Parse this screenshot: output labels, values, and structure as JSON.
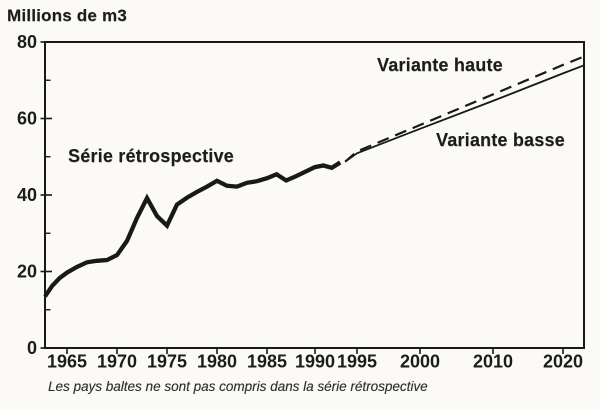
{
  "chart_data": {
    "type": "line",
    "title": "Millions de m3",
    "ylabel": "Millions de m3",
    "xlabel": "",
    "ylim": [
      0,
      80
    ],
    "grid": false,
    "legend": "inline-annotations",
    "footnote": "Les pays baltes ne sont pas compris dans la série rétrospective",
    "y_ticks": [
      {
        "label": "0",
        "value": 0
      },
      {
        "label": "20",
        "value": 20
      },
      {
        "label": "40",
        "value": 40
      },
      {
        "label": "60",
        "value": 60
      },
      {
        "label": "80",
        "value": 80
      }
    ],
    "y_minor_ticks": [
      10,
      30,
      50,
      70
    ],
    "x_ticks": [
      {
        "label": "1965",
        "year": 1965
      },
      {
        "label": "1970",
        "year": 1970
      },
      {
        "label": "1975",
        "year": 1975
      },
      {
        "label": "1980",
        "year": 1980
      },
      {
        "label": "1985",
        "year": 1985
      },
      {
        "label": "1990",
        "year": 1990
      },
      {
        "label": "1995",
        "year": 1995
      },
      {
        "label": "2000",
        "year": 2000
      },
      {
        "label": "2010",
        "year": 2010
      },
      {
        "label": "2020",
        "year": 2020
      }
    ],
    "x_scale": "piecewise-linear",
    "x_axis_anchors": [
      [
        1962,
        45
      ],
      [
        1965,
        67
      ],
      [
        1970,
        117
      ],
      [
        1975,
        167
      ],
      [
        1980,
        217
      ],
      [
        1985,
        267
      ],
      [
        1990,
        315
      ],
      [
        1995,
        357
      ],
      [
        2000,
        420
      ],
      [
        2010,
        493
      ],
      [
        2020,
        563
      ],
      [
        2023,
        584
      ]
    ],
    "series": [
      {
        "name": "Série rétrospective",
        "style": "solid-thick",
        "x": [
          1962,
          1963,
          1964,
          1965,
          1966,
          1967,
          1968,
          1969,
          1970,
          1971,
          1972,
          1973,
          1974,
          1975,
          1976,
          1977,
          1978,
          1979,
          1980,
          1981,
          1982,
          1983,
          1984,
          1985,
          1986,
          1987,
          1988,
          1989,
          1990,
          1991,
          1992,
          1993
        ],
        "values": [
          13.5,
          16.3,
          18.3,
          19.7,
          21.2,
          22.4,
          22.8,
          23.0,
          24.3,
          28.0,
          34.0,
          39.2,
          34.5,
          32.0,
          37.5,
          39.3,
          40.8,
          42.2,
          43.7,
          42.4,
          42.2,
          43.2,
          43.6,
          44.4,
          45.4,
          43.8,
          44.9,
          46.1,
          47.3,
          47.7,
          47.1,
          48.5
        ]
      },
      {
        "name": "Variante haute",
        "style": "dashed",
        "x": [
          1993.6,
          1995,
          2000,
          2010,
          2020,
          2023
        ],
        "values": [
          48.7,
          51.4,
          58.3,
          66.3,
          74.0,
          76.2
        ]
      },
      {
        "name": "Variante basse",
        "style": "solid-thin",
        "x": [
          1993.6,
          1995,
          2000,
          2010,
          2020,
          2023
        ],
        "values": [
          48.7,
          50.9,
          57.3,
          64.6,
          71.8,
          73.9
        ]
      }
    ],
    "ink_color": "#191919",
    "paper_color": "#fbfaf7"
  }
}
